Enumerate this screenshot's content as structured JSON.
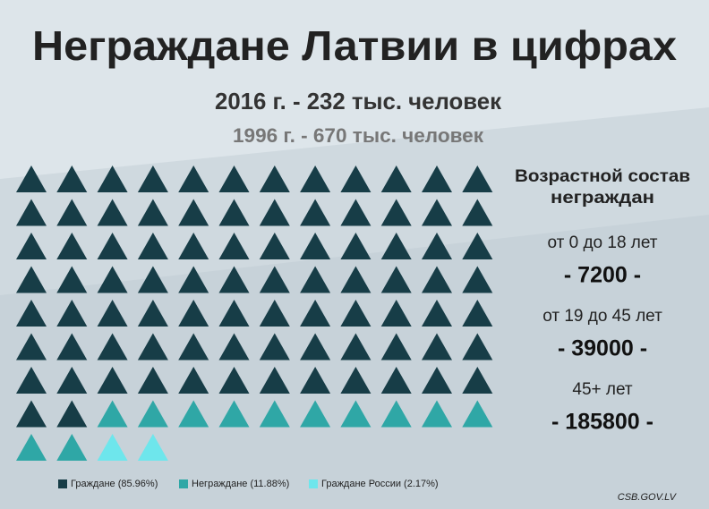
{
  "chart_data": {
    "type": "pictogram",
    "title": "Неграждане Латвии в цифрах",
    "subtitle": "2016 г. - 232 тыс. человек",
    "subtitle2": "1996 г. - 670 тыс. человек",
    "series": [
      {
        "name": "Граждане (85.96%)",
        "color": "#173d47",
        "values": 86
      },
      {
        "name": "Неграждане (11.88%)",
        "color": "#2fa7a6",
        "values": 12
      },
      {
        "name": "Граждане России (2.17%)",
        "color": "#6ee6ec",
        "values": 2
      }
    ]
  },
  "panel": {
    "title": "Возрастной состав",
    "title2": "неграждан",
    "categories": [
      "от 0 до 18 лет",
      "от 19 до 45 лет",
      "45+ лет"
    ],
    "values": [
      7200,
      39000,
      185800
    ],
    "value_labels": [
      "- 7200 -",
      "- 39000 -",
      "- 185800 -"
    ]
  },
  "source": "CSB.GOV.LV"
}
